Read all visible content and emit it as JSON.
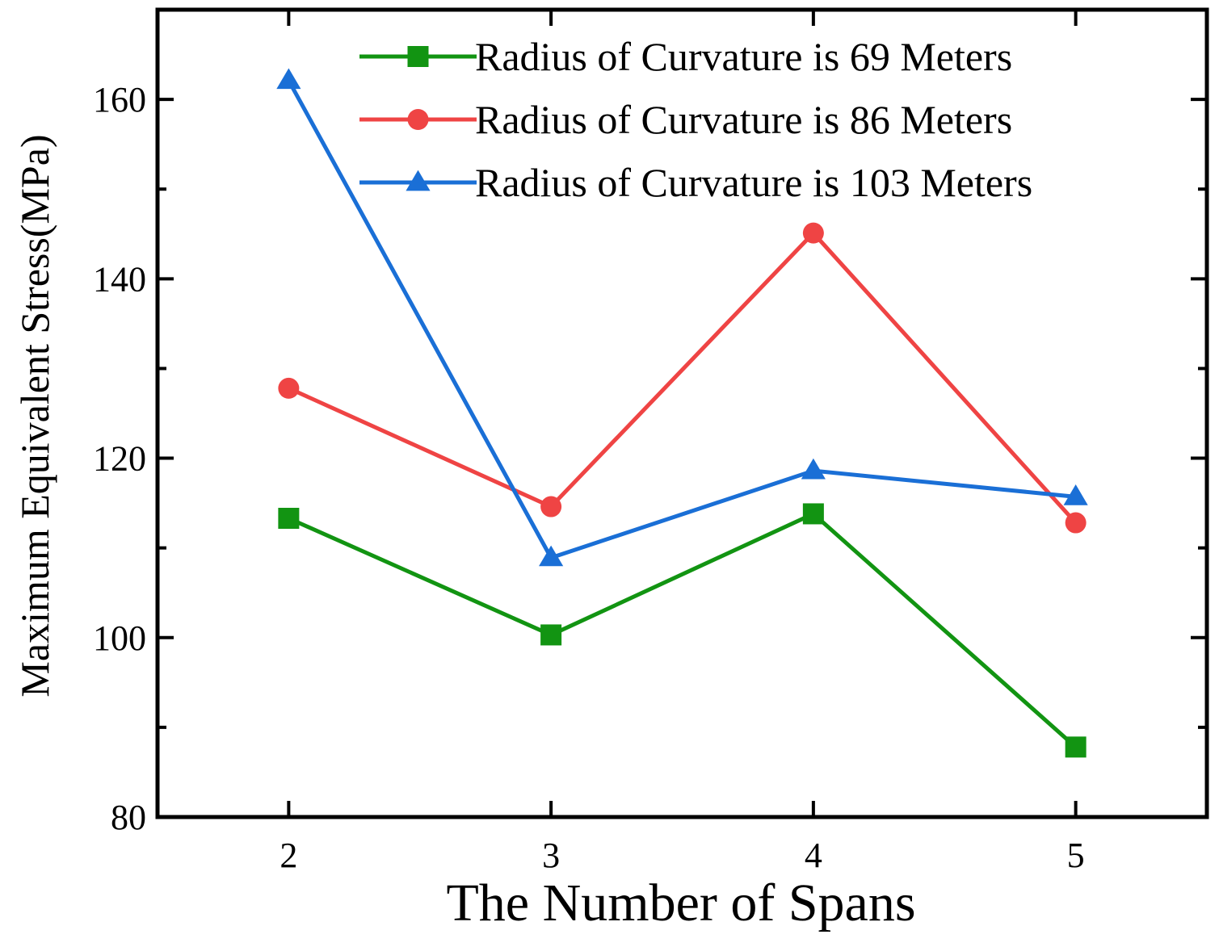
{
  "chart_data": {
    "type": "line",
    "title": "",
    "xlabel": "The Number of Spans",
    "ylabel": "Maximum Equivalent Stress(MPa)",
    "x": [
      2,
      3,
      4,
      5
    ],
    "xlim": [
      1.5,
      5.5
    ],
    "ylim": [
      80,
      170
    ],
    "y_ticks": [
      80,
      100,
      120,
      140,
      160
    ],
    "x_ticks": [
      2,
      3,
      4,
      5
    ],
    "grid": false,
    "legend_position": "top-right",
    "series": [
      {
        "name": "Radius of Curvature is 69 Meters",
        "color": "#129412",
        "marker": "square",
        "values": [
          113.3,
          100.3,
          113.8,
          87.8
        ]
      },
      {
        "name": "Radius of Curvature is 86 Meters",
        "color": "#ef4444",
        "marker": "circle",
        "values": [
          127.8,
          114.6,
          145.1,
          112.8
        ]
      },
      {
        "name": "Radius of Curvature is 103 Meters",
        "color": "#1a6fd6",
        "marker": "triangle",
        "values": [
          162.1,
          108.9,
          118.6,
          115.7
        ]
      }
    ]
  }
}
